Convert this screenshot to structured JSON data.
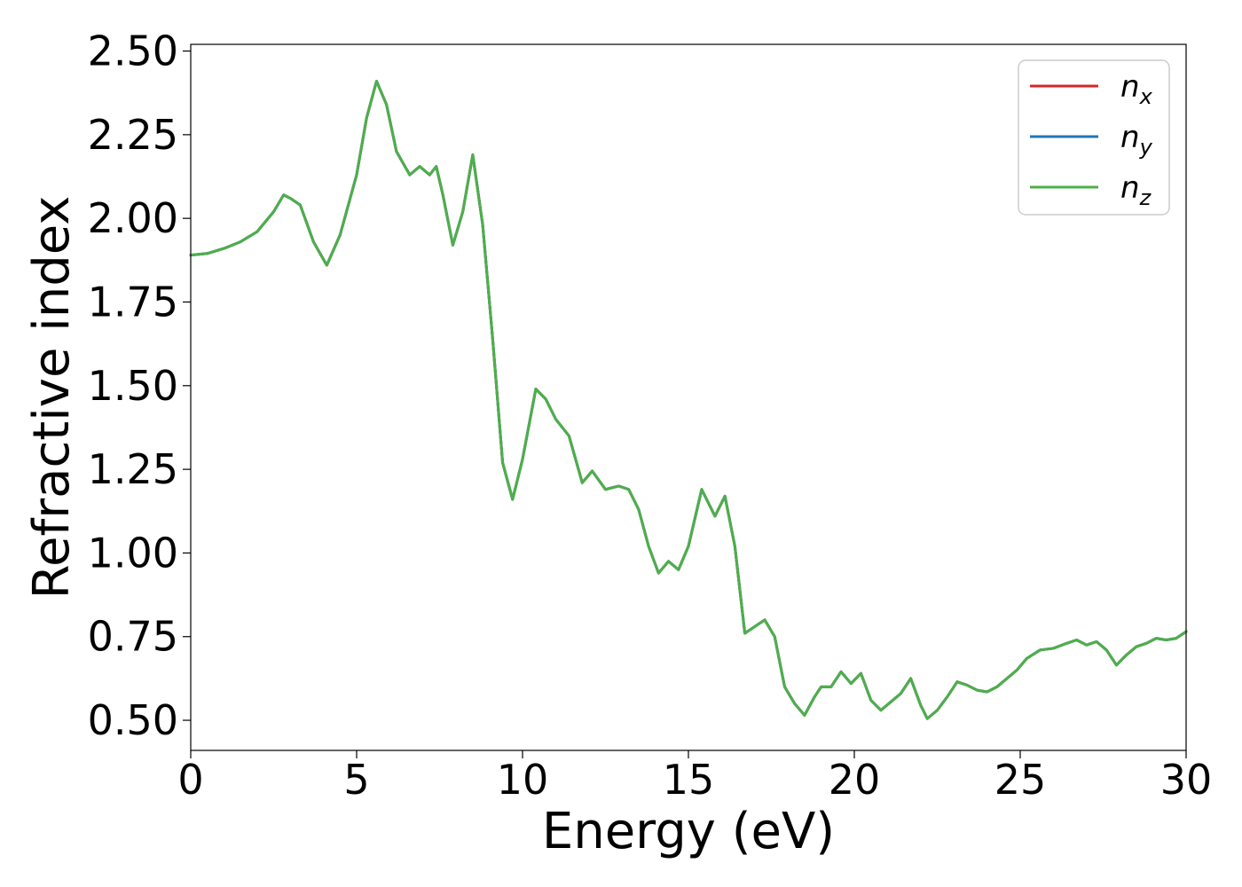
{
  "chart_data": {
    "type": "line",
    "xlabel": "Energy (eV)",
    "ylabel": "Refractive index",
    "xlim": [
      0,
      30
    ],
    "ylim": [
      0.41,
      2.52
    ],
    "xticks": [
      0,
      5,
      10,
      15,
      20,
      25,
      30
    ],
    "xtick_labels": [
      "0",
      "5",
      "10",
      "15",
      "20",
      "25",
      "30"
    ],
    "yticks": [
      0.5,
      0.75,
      1.0,
      1.25,
      1.5,
      1.75,
      2.0,
      2.25,
      2.5
    ],
    "ytick_labels": [
      "0.50",
      "0.75",
      "1.00",
      "1.25",
      "1.50",
      "1.75",
      "2.00",
      "2.25",
      "2.50"
    ],
    "grid": false,
    "legend_position": "top-right",
    "x": [
      0,
      0.5,
      1.0,
      1.5,
      2.0,
      2.5,
      2.8,
      3.0,
      3.3,
      3.7,
      4.1,
      4.5,
      5.0,
      5.3,
      5.6,
      5.9,
      6.2,
      6.6,
      6.9,
      7.2,
      7.4,
      7.6,
      7.9,
      8.2,
      8.5,
      8.8,
      9.1,
      9.4,
      9.7,
      10.0,
      10.4,
      10.7,
      11.0,
      11.4,
      11.8,
      12.1,
      12.5,
      12.9,
      13.2,
      13.5,
      13.8,
      14.1,
      14.4,
      14.7,
      15.0,
      15.4,
      15.8,
      16.1,
      16.4,
      16.7,
      17.0,
      17.3,
      17.6,
      17.9,
      18.2,
      18.5,
      18.8,
      19.0,
      19.3,
      19.6,
      19.9,
      20.2,
      20.5,
      20.8,
      21.1,
      21.4,
      21.7,
      22.0,
      22.2,
      22.5,
      22.8,
      23.1,
      23.4,
      23.7,
      24.0,
      24.3,
      24.6,
      24.9,
      25.2,
      25.6,
      26.0,
      26.4,
      26.7,
      27.0,
      27.3,
      27.6,
      27.9,
      28.2,
      28.5,
      28.8,
      29.1,
      29.4,
      29.7,
      30.0
    ],
    "series": [
      {
        "name": "x",
        "color": "#d62728",
        "y": [
          1.89,
          1.895,
          1.91,
          1.93,
          1.96,
          2.02,
          2.07,
          2.06,
          2.04,
          1.93,
          1.86,
          1.95,
          2.13,
          2.3,
          2.41,
          2.34,
          2.2,
          2.13,
          2.155,
          2.13,
          2.155,
          2.07,
          1.92,
          2.02,
          2.19,
          1.98,
          1.64,
          1.27,
          1.16,
          1.28,
          1.49,
          1.46,
          1.4,
          1.35,
          1.21,
          1.245,
          1.19,
          1.2,
          1.19,
          1.13,
          1.02,
          0.94,
          0.975,
          0.95,
          1.02,
          1.19,
          1.11,
          1.17,
          1.02,
          0.76,
          0.78,
          0.8,
          0.75,
          0.6,
          0.55,
          0.515,
          0.57,
          0.6,
          0.6,
          0.645,
          0.61,
          0.64,
          0.56,
          0.53,
          0.555,
          0.58,
          0.625,
          0.545,
          0.505,
          0.53,
          0.57,
          0.615,
          0.605,
          0.59,
          0.585,
          0.6,
          0.625,
          0.65,
          0.685,
          0.71,
          0.715,
          0.73,
          0.74,
          0.725,
          0.735,
          0.71,
          0.665,
          0.695,
          0.72,
          0.73,
          0.745,
          0.74,
          0.745,
          0.765
        ]
      },
      {
        "name": "y",
        "color": "#1f77b4",
        "y": [
          1.89,
          1.895,
          1.91,
          1.93,
          1.96,
          2.02,
          2.07,
          2.06,
          2.04,
          1.93,
          1.86,
          1.95,
          2.13,
          2.3,
          2.41,
          2.34,
          2.2,
          2.13,
          2.155,
          2.13,
          2.155,
          2.07,
          1.92,
          2.02,
          2.19,
          1.98,
          1.64,
          1.27,
          1.16,
          1.28,
          1.49,
          1.46,
          1.4,
          1.35,
          1.21,
          1.245,
          1.19,
          1.2,
          1.19,
          1.13,
          1.02,
          0.94,
          0.975,
          0.95,
          1.02,
          1.19,
          1.11,
          1.17,
          1.02,
          0.76,
          0.78,
          0.8,
          0.75,
          0.6,
          0.55,
          0.515,
          0.57,
          0.6,
          0.6,
          0.645,
          0.61,
          0.64,
          0.56,
          0.53,
          0.555,
          0.58,
          0.625,
          0.545,
          0.505,
          0.53,
          0.57,
          0.615,
          0.605,
          0.59,
          0.585,
          0.6,
          0.625,
          0.65,
          0.685,
          0.71,
          0.715,
          0.73,
          0.74,
          0.725,
          0.735,
          0.71,
          0.665,
          0.695,
          0.72,
          0.73,
          0.745,
          0.74,
          0.745,
          0.765
        ]
      },
      {
        "name": "z",
        "color": "#4daf4a",
        "y": [
          1.89,
          1.895,
          1.91,
          1.93,
          1.96,
          2.02,
          2.07,
          2.06,
          2.04,
          1.93,
          1.86,
          1.95,
          2.13,
          2.3,
          2.41,
          2.34,
          2.2,
          2.13,
          2.155,
          2.13,
          2.155,
          2.07,
          1.92,
          2.02,
          2.19,
          1.98,
          1.64,
          1.27,
          1.16,
          1.28,
          1.49,
          1.46,
          1.4,
          1.35,
          1.21,
          1.245,
          1.19,
          1.2,
          1.19,
          1.13,
          1.02,
          0.94,
          0.975,
          0.95,
          1.02,
          1.19,
          1.11,
          1.17,
          1.02,
          0.76,
          0.78,
          0.8,
          0.75,
          0.6,
          0.55,
          0.515,
          0.57,
          0.6,
          0.6,
          0.645,
          0.61,
          0.64,
          0.56,
          0.53,
          0.555,
          0.58,
          0.625,
          0.545,
          0.505,
          0.53,
          0.57,
          0.615,
          0.605,
          0.59,
          0.585,
          0.6,
          0.625,
          0.65,
          0.685,
          0.71,
          0.715,
          0.73,
          0.74,
          0.725,
          0.735,
          0.71,
          0.665,
          0.695,
          0.72,
          0.73,
          0.745,
          0.74,
          0.745,
          0.765
        ]
      }
    ],
    "legend": [
      {
        "base": "n",
        "sub": "x",
        "color": "#d62728"
      },
      {
        "base": "n",
        "sub": "y",
        "color": "#1f77b4"
      },
      {
        "base": "n",
        "sub": "z",
        "color": "#4daf4a"
      }
    ]
  }
}
